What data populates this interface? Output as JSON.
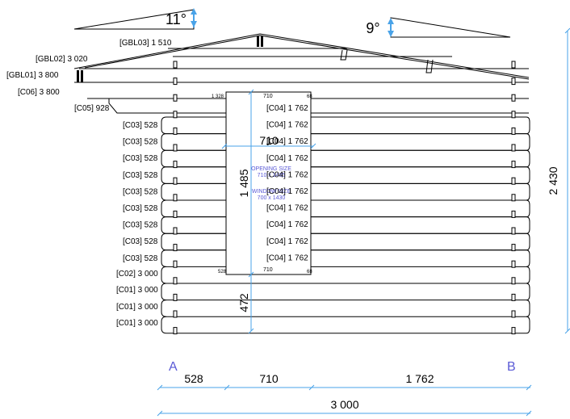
{
  "gables": {
    "gbl03": "[GBL03] 1 510",
    "gbl02": "[GBL02] 3 020",
    "gbl01": "[GBL01] 3 800"
  },
  "roof_angles": {
    "left": "11°",
    "right": "9°"
  },
  "log_labels": {
    "c06": "[C06] 3 800",
    "c05": "[C05] 928",
    "c03": [
      "[C03] 528",
      "[C03] 528",
      "[C03] 528",
      "[C03] 528",
      "[C03] 528",
      "[C03] 528",
      "[C03] 528",
      "[C03] 528",
      "[C03] 528"
    ],
    "c04": [
      "[C04] 1 762",
      "[C04] 1 762",
      "[C04] 1 762",
      "[C04] 1 762",
      "[C04] 1 762",
      "[C04] 1 762",
      "[C04] 1 762",
      "[C04] 1 762",
      "[C04] 1 762",
      "[C04] 1 762"
    ],
    "c02": "[C02] 3 000",
    "c01": [
      "[C01] 3 000",
      "[C01] 3 000",
      "[C01] 3 000"
    ]
  },
  "window": {
    "corner_top_left": "1 328",
    "corner_top_mid": "710",
    "corner_top_right": "68",
    "corner_bottom_left": "528",
    "corner_bottom_mid": "710",
    "corner_bottom_right": "68",
    "width_dim": "710",
    "height_dim": "1 485",
    "sill_dim": "472",
    "opening_title": "OPENING SIZE",
    "opening_size": "710 x 1485",
    "window_title": "WINDOW SIZE",
    "window_size": "700 x 1430"
  },
  "wall_height": "2 430",
  "corners": {
    "left": "A",
    "right": "B"
  },
  "bottom_dims": {
    "seg1": "528",
    "seg2": "710",
    "seg3": "1 762",
    "total": "3 000"
  },
  "colors": {
    "dimension_line": "#4aa3e8",
    "corner_label": "#5a5ad6"
  }
}
